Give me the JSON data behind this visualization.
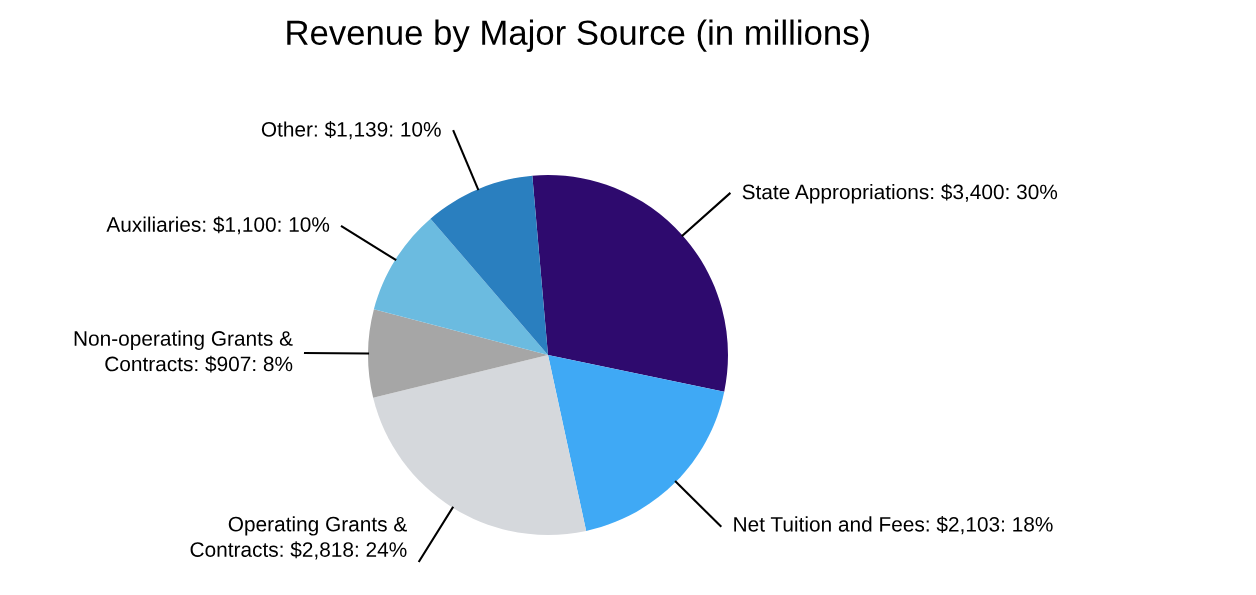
{
  "chart_data": {
    "type": "pie",
    "title": "Revenue by Major Source (in millions)",
    "categories": [
      "State Appropriations",
      "Net Tuition and Fees",
      "Operating Grants & Contracts",
      "Non-operating Grants & Contracts",
      "Auxiliaries",
      "Other"
    ],
    "values": [
      3400,
      2103,
      2818,
      907,
      1100,
      1139
    ],
    "value_labels": [
      "$3,400: 30%",
      "$2,103: 18%",
      "$2,818: 24%",
      "$907: 8%",
      "$1,100: 10%",
      "$1,139: 10%"
    ],
    "colors": [
      "#2e0a6e",
      "#3fa9f5",
      "#d5d8dc",
      "#a6a6a6",
      "#6bbbe0",
      "#2a7fbf"
    ],
    "legend": false
  }
}
